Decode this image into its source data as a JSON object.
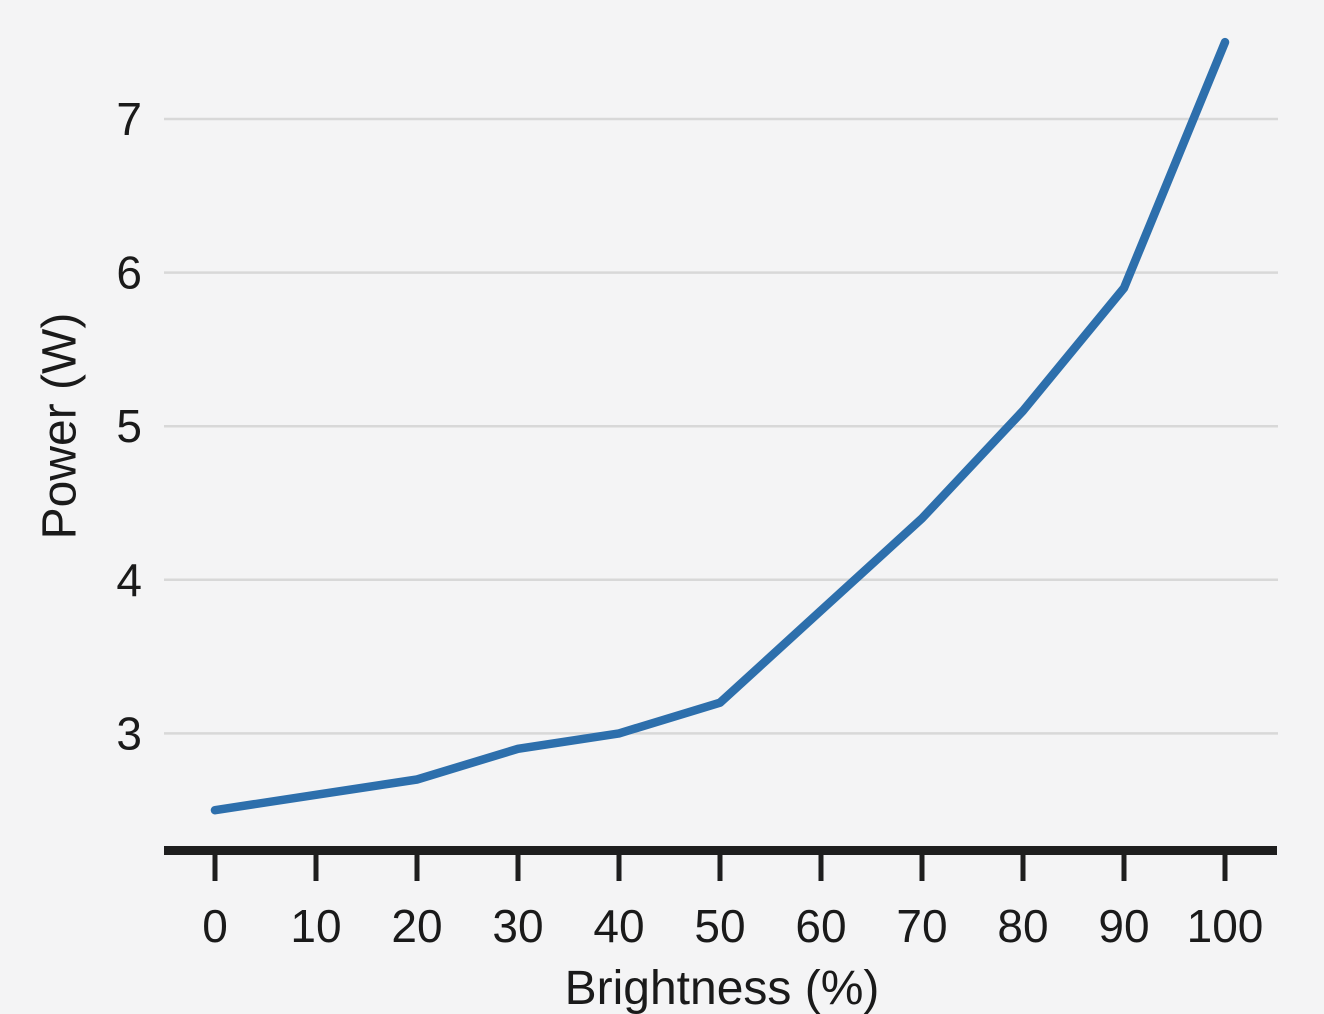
{
  "chart_data": {
    "type": "line",
    "xlabel": "Brightness (%)",
    "ylabel": "Power (W)",
    "x": [
      0,
      10,
      20,
      30,
      40,
      50,
      60,
      70,
      80,
      90,
      100
    ],
    "x_tick_labels": [
      "0",
      "10",
      "20",
      "30",
      "40",
      "50",
      "60",
      "70",
      "80",
      "90",
      "100"
    ],
    "y_tick_values": [
      3,
      4,
      5,
      6,
      7
    ],
    "y_tick_labels": [
      "3",
      "4",
      "5",
      "6",
      "7"
    ],
    "series": [
      {
        "name": "Power (W)",
        "values": [
          2.5,
          2.6,
          2.7,
          2.9,
          3.0,
          3.2,
          3.8,
          4.4,
          5.1,
          5.9,
          7.5
        ]
      }
    ],
    "xlim": [
      -5,
      105
    ],
    "ylim": [
      2.2,
      7.6
    ],
    "grid": "horizontal-only",
    "legend_position": "none",
    "colors": {
      "line": "#2d6fac",
      "background": "#f4f4f5",
      "gridline": "#d8d8d8",
      "axis": "#1e1e1e",
      "text": "#1a1a1a"
    }
  }
}
